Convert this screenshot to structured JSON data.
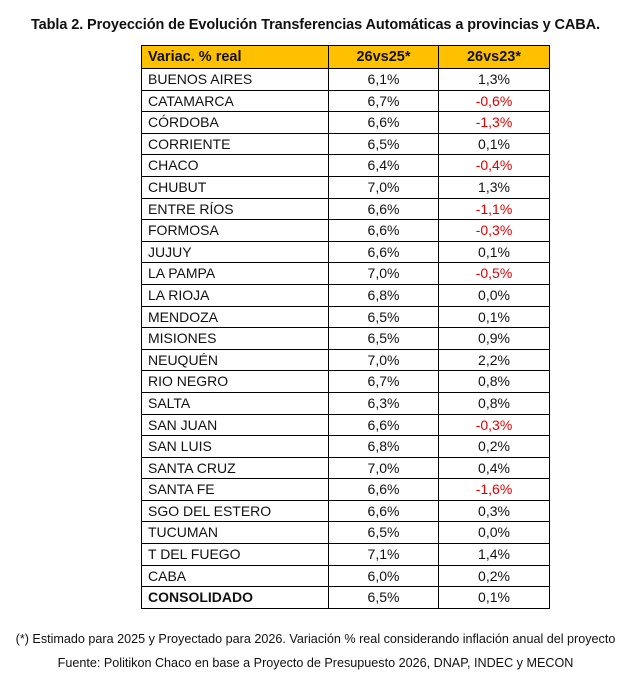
{
  "title": "Tabla 2. Proyección de Evolución Transferencias Automáticas a provincias y CABA.",
  "table": {
    "headers": [
      "Variac. % real",
      "26vs25*",
      "26vs23*"
    ],
    "rows": [
      {
        "name": "BUENOS AIRES",
        "v1": "6,1%",
        "v2": "1,3%"
      },
      {
        "name": "CATAMARCA",
        "v1": "6,7%",
        "v2": "-0,6%"
      },
      {
        "name": "CÓRDOBA",
        "v1": "6,6%",
        "v2": "-1,3%"
      },
      {
        "name": "CORRIENTE",
        "v1": "6,5%",
        "v2": "0,1%"
      },
      {
        "name": "CHACO",
        "v1": "6,4%",
        "v2": "-0,4%"
      },
      {
        "name": "CHUBUT",
        "v1": "7,0%",
        "v2": "1,3%"
      },
      {
        "name": "ENTRE RÍOS",
        "v1": "6,6%",
        "v2": "-1,1%"
      },
      {
        "name": "FORMOSA",
        "v1": "6,6%",
        "v2": "-0,3%"
      },
      {
        "name": "JUJUY",
        "v1": "6,6%",
        "v2": "0,1%"
      },
      {
        "name": "LA PAMPA",
        "v1": "7,0%",
        "v2": "-0,5%"
      },
      {
        "name": "LA RIOJA",
        "v1": "6,8%",
        "v2": "0,0%"
      },
      {
        "name": "MENDOZA",
        "v1": "6,5%",
        "v2": "0,1%"
      },
      {
        "name": "MISIONES",
        "v1": "6,5%",
        "v2": "0,9%"
      },
      {
        "name": "NEUQUÉN",
        "v1": "7,0%",
        "v2": "2,2%"
      },
      {
        "name": "RIO NEGRO",
        "v1": "6,7%",
        "v2": "0,8%"
      },
      {
        "name": "SALTA",
        "v1": "6,3%",
        "v2": "0,8%"
      },
      {
        "name": "SAN JUAN",
        "v1": "6,6%",
        "v2": "-0,3%"
      },
      {
        "name": "SAN LUIS",
        "v1": "6,8%",
        "v2": "0,2%"
      },
      {
        "name": "SANTA CRUZ",
        "v1": "7,0%",
        "v2": "0,4%"
      },
      {
        "name": "SANTA FE",
        "v1": "6,6%",
        "v2": "-1,6%"
      },
      {
        "name": "SGO DEL ESTERO",
        "v1": "6,6%",
        "v2": "0,3%"
      },
      {
        "name": "TUCUMAN",
        "v1": "6,5%",
        "v2": "0,0%"
      },
      {
        "name": "T DEL FUEGO",
        "v1": "7,1%",
        "v2": "1,4%"
      },
      {
        "name": "CABA",
        "v1": "6,0%",
        "v2": "0,2%"
      }
    ],
    "total": {
      "name": "CONSOLIDADO",
      "v1": "6,5%",
      "v2": "0,1%"
    }
  },
  "colors": {
    "header_bg": "#FFC000",
    "negative": "#e00000"
  },
  "footnote": "(*) Estimado para 2025 y Proyectado para 2026. Variación % real considerando inflación anual del proyecto",
  "source": "Fuente: Politikon Chaco en base a Proyecto de Presupuesto 2026, DNAP, INDEC y MECON"
}
